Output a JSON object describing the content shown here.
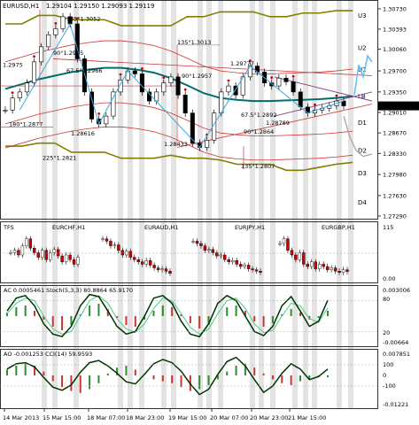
{
  "header": {
    "symbol": "EURUSD,H1",
    "ohlc": "1.29104 1.29150 1.29093 1.29119"
  },
  "current_price": "1.29119",
  "chart_data": {
    "type": "line",
    "title": "EURUSD,H1 1.29104 1.29150 1.29093 1.29119",
    "x_ticks": [
      "14 Mar 2013",
      "15 Mar 15:00",
      "18 Mar 07:00",
      "18 Mar 23:00",
      "19 Mar 15:00",
      "20 Mar 07:00",
      "20 Mar 23:00",
      "21 Mar 15:00"
    ],
    "y_ticks": [
      "1.30730",
      "1.30393",
      "1.30060",
      "1.29700",
      "1.29350",
      "1.29010",
      "1.28670",
      "1.28330",
      "1.27980",
      "1.27630",
      "1.27290"
    ],
    "ylim": [
      1.2729,
      1.3073
    ],
    "level_labels": [
      "U3",
      "U2",
      "U1",
      "LB",
      "D1",
      "D2",
      "D3",
      "D4"
    ],
    "price": [
      1.2905,
      1.2925,
      1.2935,
      1.295,
      1.2985,
      1.301,
      1.303,
      1.304,
      1.306,
      1.3048,
      1.299,
      1.2935,
      1.289,
      1.2882,
      1.2895,
      1.2935,
      1.2955,
      1.297,
      1.2965,
      1.2935,
      1.292,
      1.2935,
      1.295,
      1.296,
      1.293,
      1.29,
      1.285,
      1.2843,
      1.2855,
      1.29,
      1.2935,
      1.2945,
      1.293,
      1.296,
      1.2978,
      1.2968,
      1.295,
      1.2945,
      1.2958,
      1.2952,
      1.2935,
      1.291,
      1.29,
      1.2905,
      1.2908,
      1.2912,
      1.292,
      1.2912
    ],
    "series": [
      {
        "name": "",
        "color": "#006d6d",
        "values": [
          1.294,
          1.2948,
          1.2956,
          1.2962,
          1.2968,
          1.2972,
          1.2975,
          1.2975,
          1.2972,
          1.2967,
          1.2958,
          1.2946,
          1.2933,
          1.2925,
          1.2922,
          1.292,
          1.292,
          1.2921,
          1.2922,
          1.2923,
          1.2925,
          1.2928
        ]
      },
      {
        "name": "",
        "color": "#808000",
        "values": [
          1.3048,
          1.3048,
          1.3062,
          1.3062,
          1.3055,
          1.3055,
          1.3055,
          1.3045,
          1.3045,
          1.3045,
          1.3045,
          1.306,
          1.306,
          1.3068,
          1.3068,
          1.3068,
          1.306,
          1.306,
          1.3066,
          1.3066,
          1.307,
          1.307
        ]
      },
      {
        "name": "",
        "color": "#808000",
        "values": [
          1.2845,
          1.2845,
          1.285,
          1.285,
          1.2835,
          1.2835,
          1.2835,
          1.2825,
          1.2825,
          1.2825,
          1.283,
          1.2825,
          1.2825,
          1.2822,
          1.2815,
          1.2815,
          1.2815,
          1.2805,
          1.2805,
          1.281,
          1.2815,
          1.2818
        ]
      }
    ],
    "annotations": [
      {
        "text": "135°1.3052",
        "price": 1.3052
      },
      {
        "text": "90°1.2995",
        "price": 1.2995
      },
      {
        "text": "67.5°1.2966",
        "price": 1.2966
      },
      {
        "text": "1.2975",
        "price": 1.2975
      },
      {
        "text": "135°1.3013",
        "price": 1.3013
      },
      {
        "text": "90°1.2957",
        "price": 1.2957
      },
      {
        "text": "1.29777",
        "price": 1.29777
      },
      {
        "text": "180°1.2877",
        "price": 1.2877
      },
      {
        "text": "1.28616",
        "price": 1.28616
      },
      {
        "text": "225°1.2821",
        "price": 1.2821
      },
      {
        "text": "1.28433",
        "price": 1.28433
      },
      {
        "text": "67.5°1.2892",
        "price": 1.2892
      },
      {
        "text": "1.28789",
        "price": 1.28789
      },
      {
        "text": "90°1.2864",
        "price": 1.2864
      },
      {
        "text": "135°1.2807",
        "price": 1.2807
      }
    ],
    "panels": [
      {
        "label": "TFS",
        "ticks": [
          "115",
          "0.00"
        ],
        "sub": [
          {
            "name": "EURCHF,H1",
            "values": [
              0.55,
              0.6,
              0.5,
              0.7,
              0.85,
              0.65,
              0.55,
              0.45,
              0.6,
              0.4,
              0.55,
              0.62,
              0.48,
              0.35,
              0.5,
              0.4,
              0.3,
              0.45
            ]
          },
          {
            "name": "EURAUD,H1",
            "values": [
              0.85,
              0.8,
              0.7,
              0.72,
              0.6,
              0.5,
              0.58,
              0.45,
              0.4,
              0.35,
              0.3,
              0.38,
              0.28,
              0.22,
              0.18,
              0.2,
              0.15,
              0.1
            ]
          },
          {
            "name": "EURJPY,H1",
            "values": [
              0.8,
              0.75,
              0.7,
              0.6,
              0.62,
              0.55,
              0.48,
              0.5,
              0.4,
              0.35,
              0.38,
              0.3,
              0.25,
              0.28,
              0.2,
              0.18,
              0.15,
              0.12
            ]
          },
          {
            "name": "EURGBP,H1",
            "values": [
              0.75,
              0.85,
              0.6,
              0.5,
              0.4,
              0.55,
              0.3,
              0.25,
              0.35,
              0.2,
              0.3,
              0.25,
              0.18,
              0.22,
              0.15,
              0.12,
              0.18,
              0.14
            ]
          }
        ]
      },
      {
        "label": "AC 0.0005461  Stoch(5,3,3) 80.8864 65.9170",
        "ticks": [
          "0.003006",
          "80",
          "20",
          "-0.00664"
        ],
        "ac": [
          0.2,
          0.5,
          0.6,
          0.3,
          -0.2,
          -0.6,
          -0.8,
          -0.5,
          0.1,
          0.6,
          0.7,
          0.4,
          -0.1,
          -0.5,
          -0.6,
          -0.2,
          0.3,
          0.6,
          0.5,
          0.1,
          -0.4,
          -0.7,
          -0.5,
          0.0,
          0.5,
          0.6,
          0.3,
          -0.3,
          -0.6,
          -0.4,
          0.1,
          0.4,
          0.2,
          -0.2,
          -0.1,
          0.3
        ],
        "stoch_main": [
          60,
          85,
          90,
          70,
          35,
          15,
          10,
          30,
          70,
          92,
          88,
          60,
          30,
          15,
          20,
          50,
          85,
          90,
          75,
          40,
          15,
          10,
          35,
          75,
          90,
          80,
          50,
          20,
          12,
          30,
          70,
          88,
          60,
          30,
          40,
          81
        ],
        "stoch_signal": [
          55,
          75,
          85,
          80,
          50,
          25,
          15,
          20,
          50,
          80,
          90,
          75,
          45,
          25,
          18,
          35,
          65,
          85,
          80,
          55,
          28,
          15,
          25,
          55,
          80,
          85,
          65,
          35,
          18,
          22,
          50,
          75,
          70,
          45,
          38,
          66
        ]
      },
      {
        "label": "AO -0.001253  CCI(14) 59.9593",
        "ticks": [
          "0.007851",
          "100",
          "0",
          "-100",
          "-0.01221"
        ],
        "ao": [
          0.3,
          0.5,
          0.6,
          0.5,
          0.2,
          -0.3,
          -0.6,
          -0.8,
          -0.9,
          -0.7,
          -0.4,
          0.1,
          0.4,
          0.5,
          0.3,
          0.0,
          -0.2,
          -0.3,
          -0.4,
          -0.6,
          -0.8,
          -0.7,
          -0.5,
          -0.2,
          0.2,
          0.5,
          0.6,
          0.4,
          0.1,
          -0.2,
          -0.4,
          -0.5,
          -0.3,
          -0.2,
          -0.1,
          -0.1
        ],
        "cci": [
          60,
          110,
          120,
          80,
          -20,
          -110,
          -140,
          -90,
          30,
          120,
          140,
          90,
          20,
          -60,
          -80,
          10,
          110,
          150,
          120,
          40,
          -80,
          -180,
          -130,
          10,
          130,
          170,
          90,
          -40,
          -160,
          -100,
          20,
          110,
          60,
          -40,
          -10,
          60
        ]
      }
    ],
    "grid": false
  }
}
